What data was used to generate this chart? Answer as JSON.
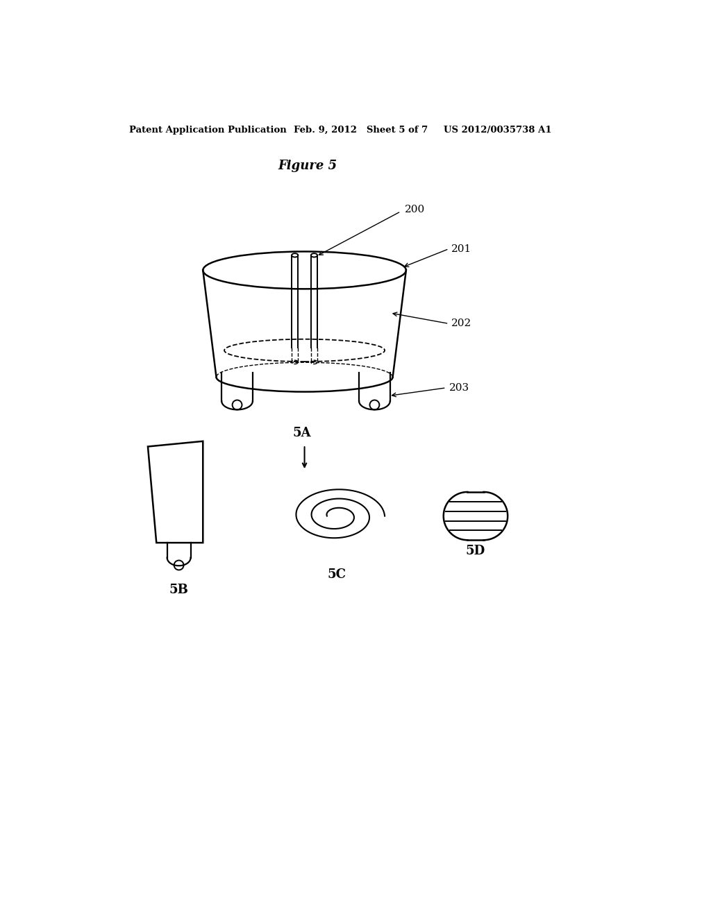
{
  "title": "Figure 5",
  "header_left": "Patent Application Publication",
  "header_mid": "Feb. 9, 2012   Sheet 5 of 7",
  "header_right": "US 2012/0035738 A1",
  "label_200": "200",
  "label_201": "201",
  "label_202": "202",
  "label_203": "203",
  "label_5A": "5A",
  "label_5B": "5B",
  "label_5C": "5C",
  "label_5D": "5D",
  "line_color": "#000000",
  "bg_color": "#ffffff"
}
